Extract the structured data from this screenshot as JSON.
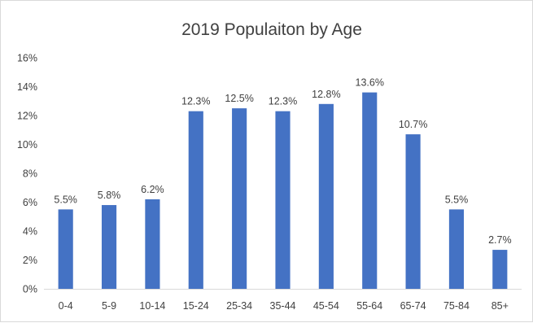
{
  "chart_data": {
    "type": "bar",
    "title": "2019 Populaiton by Age",
    "xlabel": "",
    "ylabel": "",
    "categories": [
      "0-4",
      "5-9",
      "10-14",
      "15-24",
      "25-34",
      "35-44",
      "45-54",
      "55-64",
      "65-74",
      "75-84",
      "85+"
    ],
    "values": [
      5.5,
      5.8,
      6.2,
      12.3,
      12.5,
      12.3,
      12.8,
      13.6,
      10.7,
      5.5,
      2.7
    ],
    "data_labels": [
      "5.5%",
      "5.8%",
      "6.2%",
      "12.3%",
      "12.5%",
      "12.3%",
      "12.8%",
      "13.6%",
      "10.7%",
      "5.5%",
      "2.7%"
    ],
    "ylim": [
      0,
      16
    ],
    "y_ticks": [
      0,
      2,
      4,
      6,
      8,
      10,
      12,
      14,
      16
    ],
    "y_tick_labels": [
      "0%",
      "2%",
      "4%",
      "6%",
      "8%",
      "10%",
      "12%",
      "14%",
      "16%"
    ],
    "grid": false,
    "legend": "none",
    "colors": {
      "bar": "#4472c4",
      "axis": "#d9d9d9",
      "text": "#404040"
    }
  }
}
